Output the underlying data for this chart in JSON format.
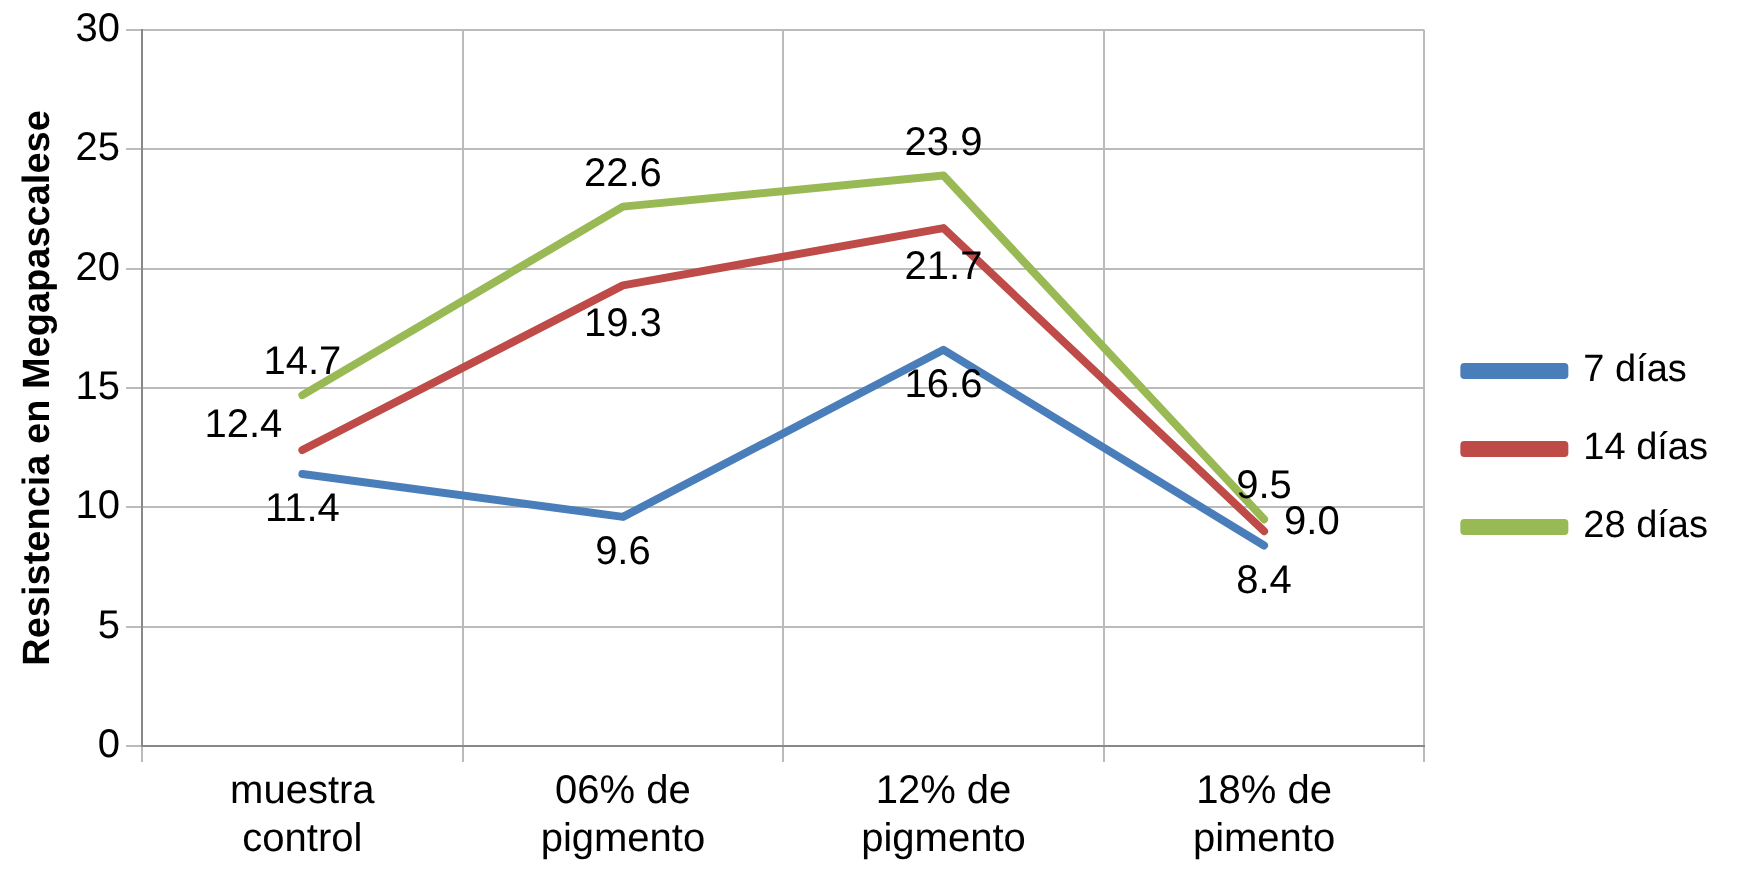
{
  "chart_data": {
    "type": "line",
    "ylabel": "Resistencia en Megapascalese",
    "categories": [
      "muestra control",
      "06% de pigmento",
      "12% de pigmento",
      "18% de pimento"
    ],
    "series": [
      {
        "name": "7 días",
        "color": "#4a7ebb",
        "values": [
          11.4,
          9.6,
          16.6,
          8.4
        ],
        "value_labels": [
          "11.4",
          "9.6",
          "16.6",
          "8.4"
        ]
      },
      {
        "name": "14 días",
        "color": "#be4b48",
        "values": [
          12.4,
          19.3,
          21.7,
          9.0
        ],
        "value_labels": [
          "12.4",
          "19.3",
          "21.7",
          "9.0"
        ]
      },
      {
        "name": "28 días",
        "color": "#98b954",
        "values": [
          14.7,
          22.6,
          23.9,
          9.5
        ],
        "value_labels": [
          "14.7",
          "22.6",
          "23.9",
          "9.5"
        ]
      }
    ],
    "ylim": [
      0,
      30
    ],
    "yticks": [
      0,
      5,
      10,
      15,
      20,
      25,
      30
    ],
    "grid": true,
    "legend": "right",
    "marker": "none",
    "line_style": "solid"
  }
}
